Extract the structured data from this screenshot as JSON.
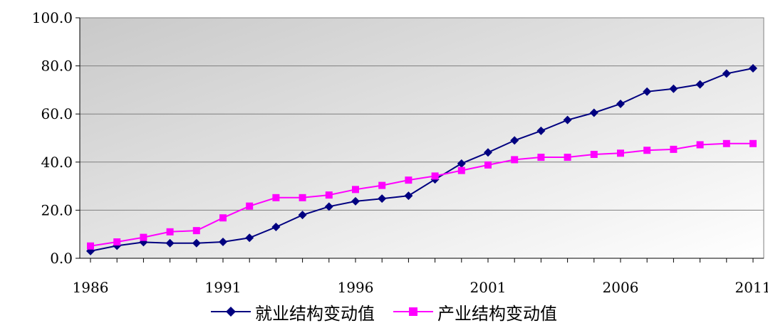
{
  "chart_data": {
    "type": "line",
    "title": "",
    "xlabel": "",
    "ylabel": "",
    "x": [
      1986,
      1987,
      1988,
      1989,
      1990,
      1991,
      1992,
      1993,
      1994,
      1995,
      1996,
      1997,
      1998,
      1999,
      2000,
      2001,
      2002,
      2003,
      2004,
      2005,
      2006,
      2007,
      2008,
      2009,
      2010,
      2011
    ],
    "x_ticks": [
      "1986",
      "1991",
      "1996",
      "2001",
      "2006",
      "2011"
    ],
    "y_ticks": [
      "0.0",
      "20.0",
      "40.0",
      "60.0",
      "80.0",
      "100.0"
    ],
    "ylim": [
      0,
      100
    ],
    "grid": true,
    "legend_position": "bottom",
    "series": [
      {
        "name": "就业结构变动值",
        "color": "#000080",
        "marker": "diamond",
        "values": [
          3.0,
          5.2,
          6.7,
          6.3,
          6.3,
          6.8,
          8.5,
          13.0,
          18.0,
          21.5,
          23.7,
          24.8,
          26.0,
          32.8,
          39.4,
          44.0,
          49.0,
          53.0,
          57.5,
          60.5,
          64.2,
          69.3,
          70.5,
          72.3,
          76.8,
          79.0
        ]
      },
      {
        "name": "产业结构变动值",
        "color": "#FF00FF",
        "marker": "square",
        "values": [
          5.1,
          6.8,
          8.7,
          11.0,
          11.5,
          16.8,
          21.7,
          25.2,
          25.2,
          26.3,
          28.6,
          30.3,
          32.5,
          34.2,
          36.5,
          38.8,
          41.0,
          42.0,
          42.0,
          43.2,
          43.7,
          44.9,
          45.3,
          47.2,
          47.7,
          47.7
        ]
      }
    ]
  }
}
